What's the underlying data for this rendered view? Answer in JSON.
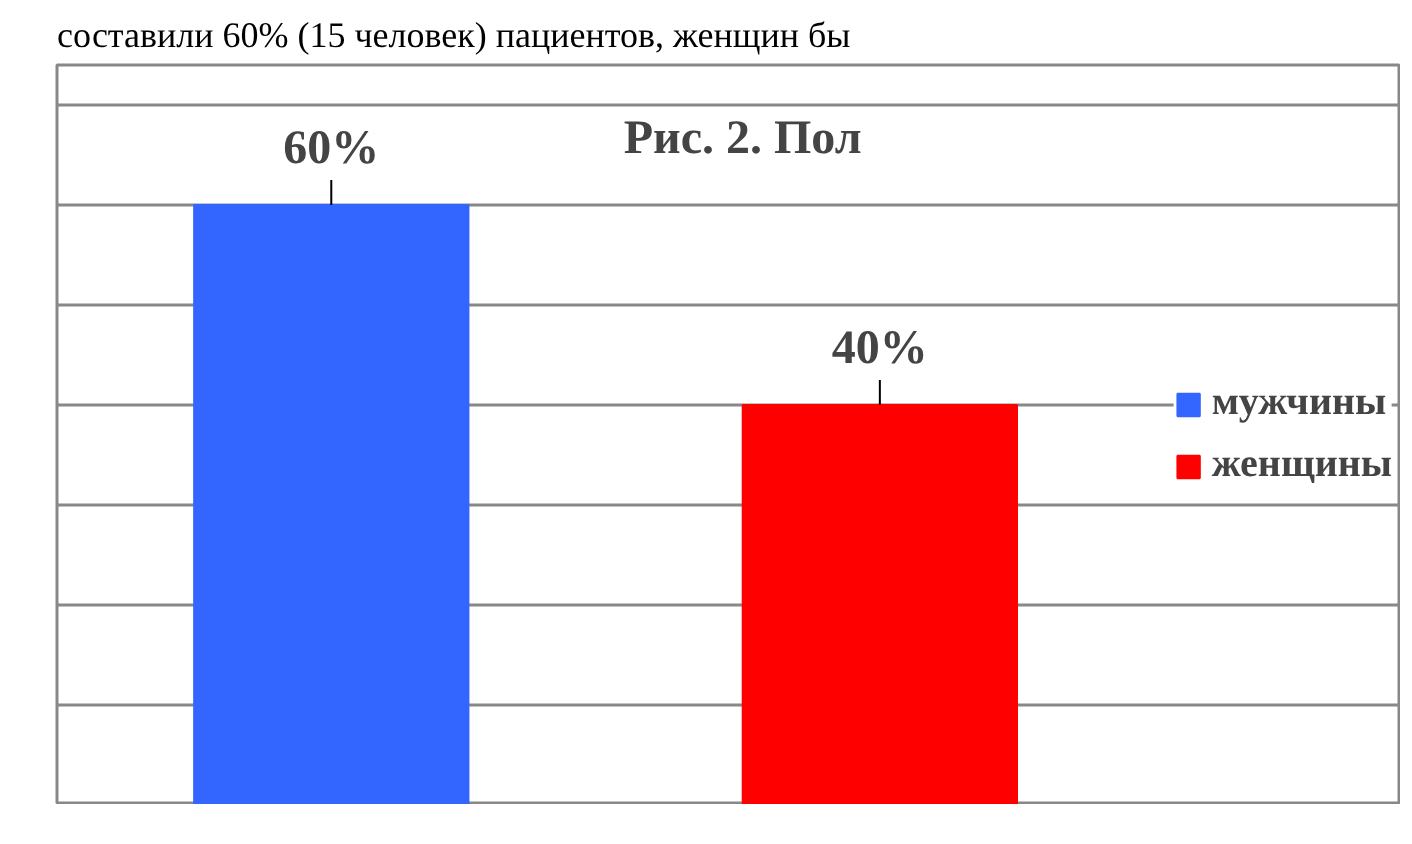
{
  "chart_data": {
    "type": "bar",
    "title": "Рис. 2. Пол",
    "annotations": [
      "составили 60% (15 человек) пациентов, женщин бы"
    ],
    "categories": [
      null,
      null
    ],
    "series": [
      {
        "name": "мужчины",
        "color": "#3366ff",
        "values": [
          60,
          null
        ],
        "value_labels": [
          "60%",
          null
        ]
      },
      {
        "name": "женщины",
        "color": "#ff0000",
        "values": [
          null,
          40
        ],
        "value_labels": [
          null,
          "40%"
        ]
      }
    ],
    "ylim": [
      0,
      74
    ],
    "yticks": [
      {
        "value": 10,
        "label": null
      },
      {
        "value": 20,
        "label": null
      },
      {
        "value": 30,
        "label": null
      },
      {
        "value": 40,
        "label": null
      },
      {
        "value": 50,
        "label": null
      },
      {
        "value": 60,
        "label": null
      },
      {
        "value": 70,
        "label": null
      }
    ],
    "tick_labels": false,
    "grid": "y",
    "stacked": true,
    "legend": "right"
  }
}
